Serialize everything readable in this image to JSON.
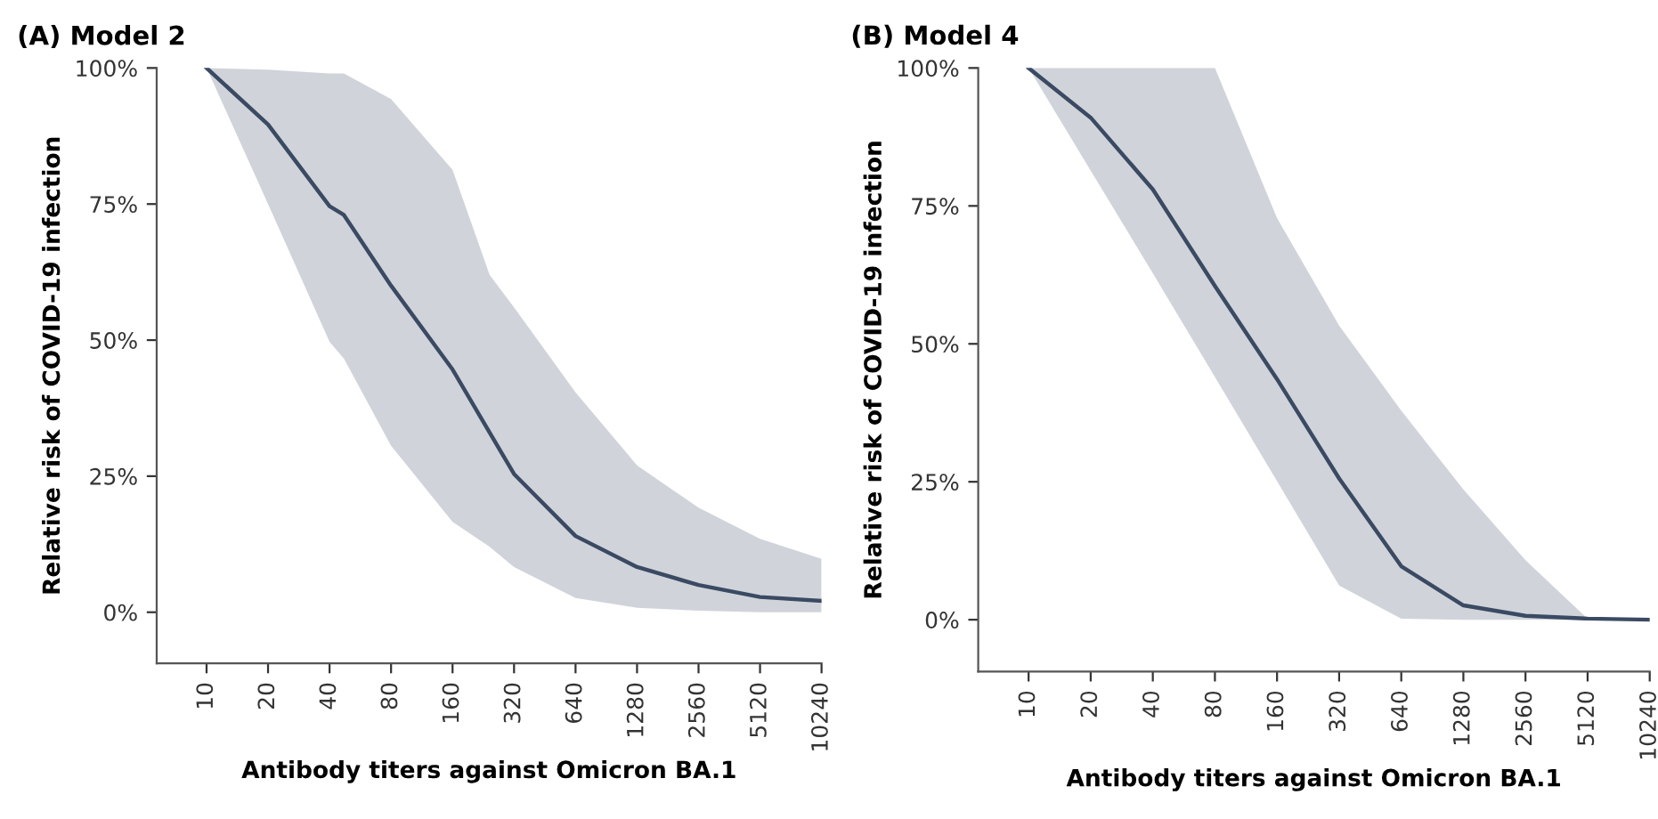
{
  "chart_data": [
    {
      "type": "line",
      "title": "(A) Model 2",
      "xlabel": "Antibody titers against Omicron BA.1",
      "ylabel": "Relative risk of COVID-19 infection",
      "log": "x",
      "xlim": [
        5.7,
        10240
      ],
      "xticks": [
        10,
        20,
        40,
        80,
        160,
        320,
        640,
        1280,
        2560,
        5120,
        10240
      ],
      "ylim": [
        -9.4,
        100
      ],
      "yticks": [
        {
          "value": 0,
          "label": "0%"
        },
        {
          "value": 25,
          "label": "25%"
        },
        {
          "value": 50,
          "label": "50%"
        },
        {
          "value": 75,
          "label": "75%"
        },
        {
          "value": 100,
          "label": "100%"
        }
      ],
      "x": [
        10,
        20,
        40,
        47,
        80,
        160,
        243,
        320,
        640,
        1280,
        2560,
        5120,
        10240
      ],
      "series": [
        {
          "color": "#3b4a63",
          "values": [
            100,
            89.6,
            74.6,
            73,
            60,
            44.6,
            33,
            25.4,
            14,
            8.3,
            5,
            2.8,
            2.1
          ],
          "lower": [
            100,
            75,
            49.7,
            46.6,
            30.6,
            16.6,
            12,
            8.3,
            2.6,
            0.8,
            0.3,
            0,
            0
          ],
          "upper": [
            100,
            99.7,
            99,
            99,
            94.3,
            81.3,
            62,
            56,
            40.4,
            27,
            19.2,
            13.5,
            9.8
          ]
        }
      ]
    },
    {
      "type": "line",
      "title": "(B) Model 4",
      "xlabel": "Antibody titers against Omicron BA.1",
      "ylabel": "Relative risk of COVID-19 infection",
      "log": "x",
      "xlim": [
        5.7,
        10240
      ],
      "xticks": [
        10,
        20,
        40,
        80,
        160,
        320,
        640,
        1280,
        2560,
        5120,
        10240
      ],
      "ylim": [
        -9.4,
        100
      ],
      "yticks": [
        {
          "value": 0,
          "label": "0%"
        },
        {
          "value": 25,
          "label": "25%"
        },
        {
          "value": 50,
          "label": "50%"
        },
        {
          "value": 75,
          "label": "75%"
        },
        {
          "value": 100,
          "label": "100%"
        }
      ],
      "x": [
        10,
        20,
        40,
        80,
        160,
        320,
        640,
        1280,
        2560,
        5120,
        10240
      ],
      "series": [
        {
          "color": "#3b4a63",
          "values": [
            100,
            91,
            78,
            60.5,
            43.6,
            25.6,
            9.7,
            2.6,
            0.7,
            0.2,
            0
          ],
          "lower": [
            100,
            81.4,
            62.8,
            44,
            25.1,
            6.2,
            0.2,
            0,
            0,
            0,
            0
          ],
          "upper": [
            100,
            100,
            100,
            100,
            72.8,
            53.3,
            37.9,
            23.6,
            10.8,
            0.2,
            0
          ]
        }
      ]
    }
  ]
}
